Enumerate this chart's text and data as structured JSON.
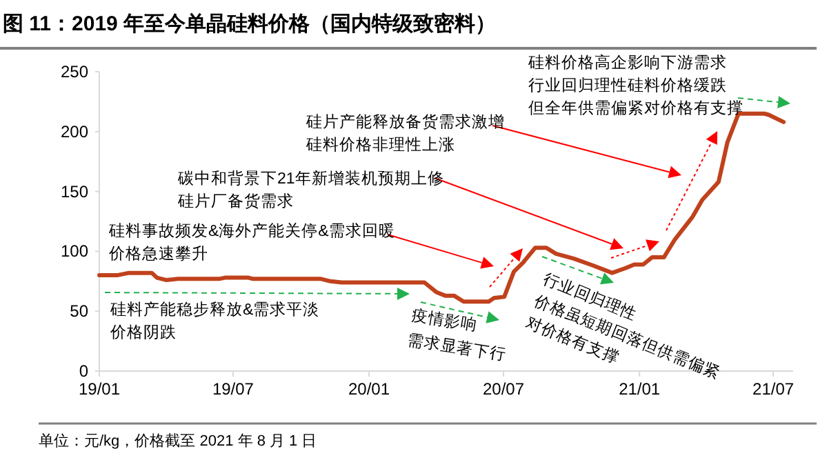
{
  "chart_data": {
    "type": "line",
    "title": "图 11：2019 年至今单晶硅料价格（国内特级致密料）",
    "x": [
      "2019-01-01",
      "2019-01-25",
      "2019-02-10",
      "2019-03-13",
      "2019-03-20",
      "2019-04-02",
      "2019-04-17",
      "2019-06-12",
      "2019-06-20",
      "2019-07-22",
      "2019-07-28",
      "2019-10-28",
      "2019-11-10",
      "2019-11-25",
      "2020-03-16",
      "2020-04-01",
      "2020-04-13",
      "2020-04-25",
      "2020-05-08",
      "2020-06-11",
      "2020-06-18",
      "2020-07-02",
      "2020-07-15",
      "2020-07-28",
      "2020-08-13",
      "2020-08-28",
      "2020-09-10",
      "2020-10-04",
      "2020-10-31",
      "2020-11-25",
      "2020-12-13",
      "2020-12-25",
      "2021-01-06",
      "2021-01-18",
      "2021-02-03",
      "2021-02-18",
      "2021-03-14",
      "2021-03-27",
      "2021-04-18",
      "2021-04-30",
      "2021-05-15",
      "2021-06-19",
      "2021-06-25",
      "2021-07-15"
    ],
    "series": [
      {
        "color": "#c0421c",
        "values": [
          80,
          80,
          82,
          82,
          78,
          76,
          77,
          77,
          78,
          78,
          77,
          77,
          75,
          74,
          74,
          66,
          63,
          63,
          58,
          58,
          61,
          62,
          83,
          91,
          103,
          103,
          98,
          94,
          88,
          82,
          86,
          89,
          89,
          95,
          95,
          110,
          129,
          143,
          158,
          191,
          215,
          215,
          214,
          208
        ]
      }
    ],
    "xlim": [
      "2019-01-01",
      "2021-07-28"
    ],
    "xticks": [
      {
        "value": "2019-01-01",
        "label": "19/01"
      },
      {
        "value": "2019-07-01",
        "label": "19/07"
      },
      {
        "value": "2020-01-01",
        "label": "20/01"
      },
      {
        "value": "2020-07-01",
        "label": "20/07"
      },
      {
        "value": "2021-01-01",
        "label": "21/01"
      },
      {
        "value": "2021-07-01",
        "label": "21/07"
      }
    ],
    "ylim": [
      0,
      250
    ],
    "yticks": [
      0,
      50,
      100,
      150,
      200,
      250
    ],
    "grid": false,
    "marker": "none",
    "line_style": "solid",
    "annotations": [
      "硅料事故频发&海外产能关停&需求回暖",
      "价格急速攀升",
      "碳中和背景下21年新增装机预期上修",
      "硅片厂备货需求",
      "硅片产能释放备货需求激增",
      "硅料价格非理性上涨",
      "硅料价格高企影响下游需求",
      "行业回归理性硅料价格缓跌",
      "但全年供需偏紧对价格有支撑",
      "硅料产能稳步释放&需求平淡",
      "价格阴跌",
      "疫情影响",
      "需求显著下行",
      "行业回归理性",
      "价格虽短期回落但供需偏紧",
      "对价格有支撑",
      "单位：元/kg，价格截至 2021 年 8 月 1 日"
    ]
  }
}
